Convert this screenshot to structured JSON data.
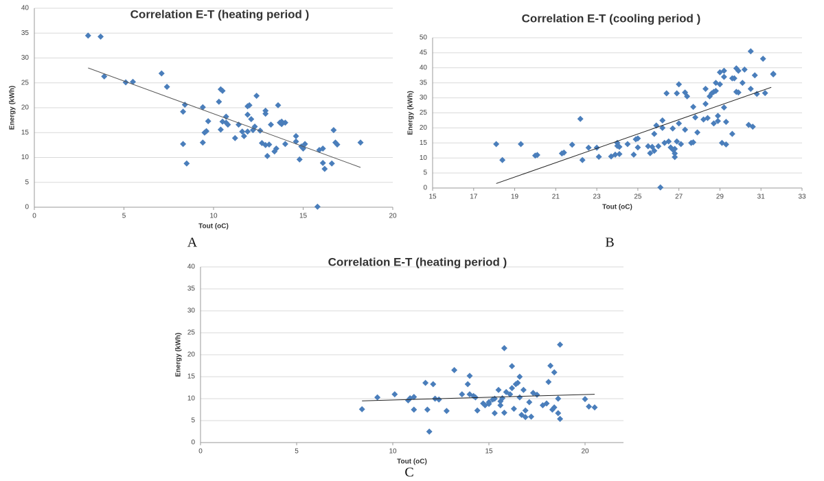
{
  "chart_data": [
    {
      "type": "scatter",
      "title": "Correlation E-T (heating period )",
      "x_label": "Tout (oC)",
      "y_label": "Energy (kWh)",
      "panel_label": "A",
      "color": "#4a7ebb",
      "trendline_color": "#555555",
      "grid": true,
      "xlim": [
        0,
        20
      ],
      "xticks": [
        0,
        5,
        10,
        15,
        20
      ],
      "ylim": [
        0,
        40
      ],
      "yticks": [
        0,
        5,
        10,
        15,
        20,
        25,
        30,
        35,
        40
      ],
      "x": [
        3.0,
        3.7,
        3.9,
        5.1,
        5.5,
        7.1,
        7.4,
        8.3,
        8.4,
        8.3,
        8.5,
        9.4,
        9.4,
        9.5,
        9.6,
        9.7,
        10.3,
        10.4,
        10.5,
        10.4,
        10.5,
        10.7,
        10.8,
        10.7,
        11.2,
        11.4,
        11.6,
        11.7,
        11.9,
        11.9,
        12.0,
        11.9,
        12.1,
        12.2,
        12.3,
        12.4,
        12.6,
        12.7,
        12.9,
        12.9,
        12.9,
        13.0,
        13.1,
        13.2,
        13.4,
        13.5,
        13.6,
        13.7,
        13.8,
        13.8,
        14.0,
        14.0,
        14.6,
        14.6,
        14.8,
        14.9,
        15.0,
        15.1,
        15.8,
        15.9,
        16.1,
        16.1,
        16.2,
        16.6,
        16.7,
        16.8,
        16.9,
        18.2
      ],
      "y": [
        34.5,
        34.3,
        26.3,
        25.1,
        25.2,
        26.9,
        24.2,
        19.2,
        20.6,
        12.7,
        8.8,
        20.1,
        13.0,
        15.0,
        15.3,
        17.3,
        21.2,
        23.7,
        23.4,
        15.6,
        17.2,
        18.2,
        16.6,
        17.0,
        13.9,
        16.6,
        15.2,
        14.3,
        18.6,
        20.3,
        20.5,
        15.2,
        17.7,
        15.5,
        16.2,
        22.4,
        15.4,
        12.9,
        18.8,
        19.4,
        12.5,
        10.3,
        12.6,
        16.6,
        11.2,
        11.8,
        20.5,
        17.0,
        16.7,
        17.2,
        17.0,
        12.7,
        14.3,
        13.2,
        9.6,
        12.2,
        11.8,
        12.7,
        0.1,
        11.5,
        11.8,
        8.9,
        7.7,
        8.8,
        15.5,
        13.0,
        12.6,
        13.0
      ],
      "trendline": {
        "x": [
          3.0,
          18.2
        ],
        "y": [
          28,
          8
        ]
      }
    },
    {
      "type": "scatter",
      "title": "Correlation E-T (cooling period )",
      "x_label": "Tout (oC)",
      "y_label": "Energy (kWh)",
      "panel_label": "B",
      "color": "#4a7ebb",
      "trendline_color": "#222222",
      "grid": true,
      "xlim": [
        15,
        33
      ],
      "xticks": [
        15,
        17,
        19,
        21,
        23,
        25,
        27,
        29,
        31,
        33
      ],
      "ylim": [
        0,
        50
      ],
      "yticks": [
        0,
        5,
        10,
        15,
        20,
        25,
        30,
        35,
        40,
        45,
        50
      ],
      "x": [
        18.1,
        18.4,
        19.3,
        20.0,
        20.1,
        21.3,
        21.4,
        21.8,
        22.2,
        22.3,
        22.6,
        23.0,
        23.1,
        23.7,
        23.9,
        24.0,
        24.0,
        24.1,
        24.1,
        24.5,
        24.8,
        24.9,
        25.0,
        25.0,
        25.5,
        25.6,
        25.7,
        25.8,
        25.8,
        25.9,
        26.0,
        26.1,
        26.2,
        26.2,
        26.3,
        26.4,
        26.5,
        26.6,
        26.7,
        26.7,
        26.8,
        26.8,
        26.8,
        26.9,
        26.9,
        27.0,
        27.0,
        27.1,
        27.3,
        27.3,
        27.4,
        27.6,
        27.7,
        27.7,
        27.8,
        27.9,
        28.2,
        28.3,
        28.3,
        28.4,
        28.5,
        28.6,
        28.7,
        28.7,
        28.8,
        28.8,
        28.9,
        28.9,
        29.0,
        29.0,
        29.1,
        29.2,
        29.2,
        29.2,
        29.3,
        29.3,
        29.6,
        29.6,
        29.7,
        29.8,
        29.8,
        29.9,
        29.9,
        30.1,
        30.2,
        30.4,
        30.5,
        30.5,
        30.6,
        30.7,
        30.8,
        31.1,
        31.2,
        31.6,
        31.6
      ],
      "y": [
        14.6,
        9.3,
        14.6,
        10.8,
        11.0,
        11.5,
        11.8,
        14.4,
        23.0,
        9.3,
        13.4,
        13.4,
        10.4,
        10.5,
        11.1,
        14.0,
        15.0,
        13.7,
        11.3,
        14.6,
        11.1,
        16.2,
        16.5,
        13.5,
        13.9,
        11.6,
        13.7,
        18.0,
        12.4,
        20.8,
        13.9,
        0.2,
        20.0,
        22.5,
        15.0,
        31.5,
        15.5,
        13.5,
        12.8,
        19.8,
        11.5,
        13.0,
        10.3,
        15.5,
        31.5,
        34.5,
        21.5,
        14.6,
        19.4,
        31.8,
        30.5,
        15.0,
        15.2,
        27.0,
        23.5,
        18.5,
        22.8,
        28.0,
        33.0,
        23.3,
        30.5,
        31.5,
        32.0,
        21.5,
        35.0,
        32.3,
        24.0,
        22.3,
        34.5,
        38.5,
        15.0,
        37.0,
        39.0,
        26.8,
        14.5,
        22.0,
        36.5,
        18.0,
        36.5,
        32.0,
        39.8,
        39.0,
        31.8,
        35.0,
        39.4,
        21.0,
        45.5,
        33.0,
        20.4,
        37.5,
        31.3,
        43.0,
        31.6,
        38.0,
        37.8
      ],
      "trendline": {
        "x": [
          18.1,
          31.5
        ],
        "y": [
          1.5,
          33.5
        ]
      }
    },
    {
      "type": "scatter",
      "title": "Correlation E-T (heating period )",
      "x_label": "Tout (oC)",
      "y_label": "Energy (kWh)",
      "panel_label": "C",
      "color": "#4a7ebb",
      "trendline_color": "#222222",
      "grid": true,
      "xlim": [
        0,
        22
      ],
      "xticks": [
        0,
        5,
        10,
        15,
        20
      ],
      "ylim": [
        0,
        40
      ],
      "yticks": [
        0,
        5,
        10,
        15,
        20,
        25,
        30,
        35,
        40
      ],
      "x": [
        8.4,
        9.2,
        10.1,
        10.8,
        10.9,
        11.1,
        11.1,
        11.7,
        11.8,
        11.9,
        12.1,
        12.2,
        12.4,
        12.8,
        13.2,
        13.6,
        13.9,
        14.0,
        14.0,
        14.2,
        14.3,
        14.4,
        14.7,
        14.8,
        15.0,
        15.0,
        15.2,
        15.3,
        15.3,
        15.5,
        15.6,
        15.6,
        15.7,
        15.8,
        15.8,
        15.9,
        16.1,
        16.2,
        16.2,
        16.3,
        16.4,
        16.5,
        16.6,
        16.6,
        16.7,
        16.8,
        16.9,
        16.9,
        17.1,
        17.2,
        17.3,
        17.5,
        17.8,
        18.0,
        18.1,
        18.2,
        18.3,
        18.4,
        18.4,
        18.6,
        18.6,
        18.7,
        18.7,
        20.0,
        20.2,
        20.5
      ],
      "y": [
        7.6,
        10.3,
        11.0,
        9.6,
        10.1,
        10.4,
        7.5,
        13.6,
        7.5,
        2.5,
        13.3,
        10.0,
        9.8,
        7.2,
        16.5,
        11.0,
        13.3,
        15.2,
        11.0,
        10.6,
        10.3,
        7.3,
        8.9,
        8.5,
        8.8,
        9.2,
        9.8,
        6.7,
        10.0,
        12.0,
        8.5,
        9.4,
        10.1,
        6.8,
        21.5,
        11.5,
        11.0,
        17.4,
        12.4,
        7.7,
        13.3,
        13.6,
        15.0,
        10.3,
        6.3,
        12.0,
        5.8,
        7.3,
        9.2,
        5.9,
        11.3,
        10.9,
        8.5,
        8.9,
        13.8,
        17.5,
        7.5,
        16.0,
        8.0,
        10.0,
        6.7,
        22.3,
        5.4,
        9.9,
        8.2,
        8.0
      ],
      "trendline": {
        "x": [
          8.4,
          20.5
        ],
        "y": [
          9.5,
          11.0
        ]
      }
    }
  ]
}
